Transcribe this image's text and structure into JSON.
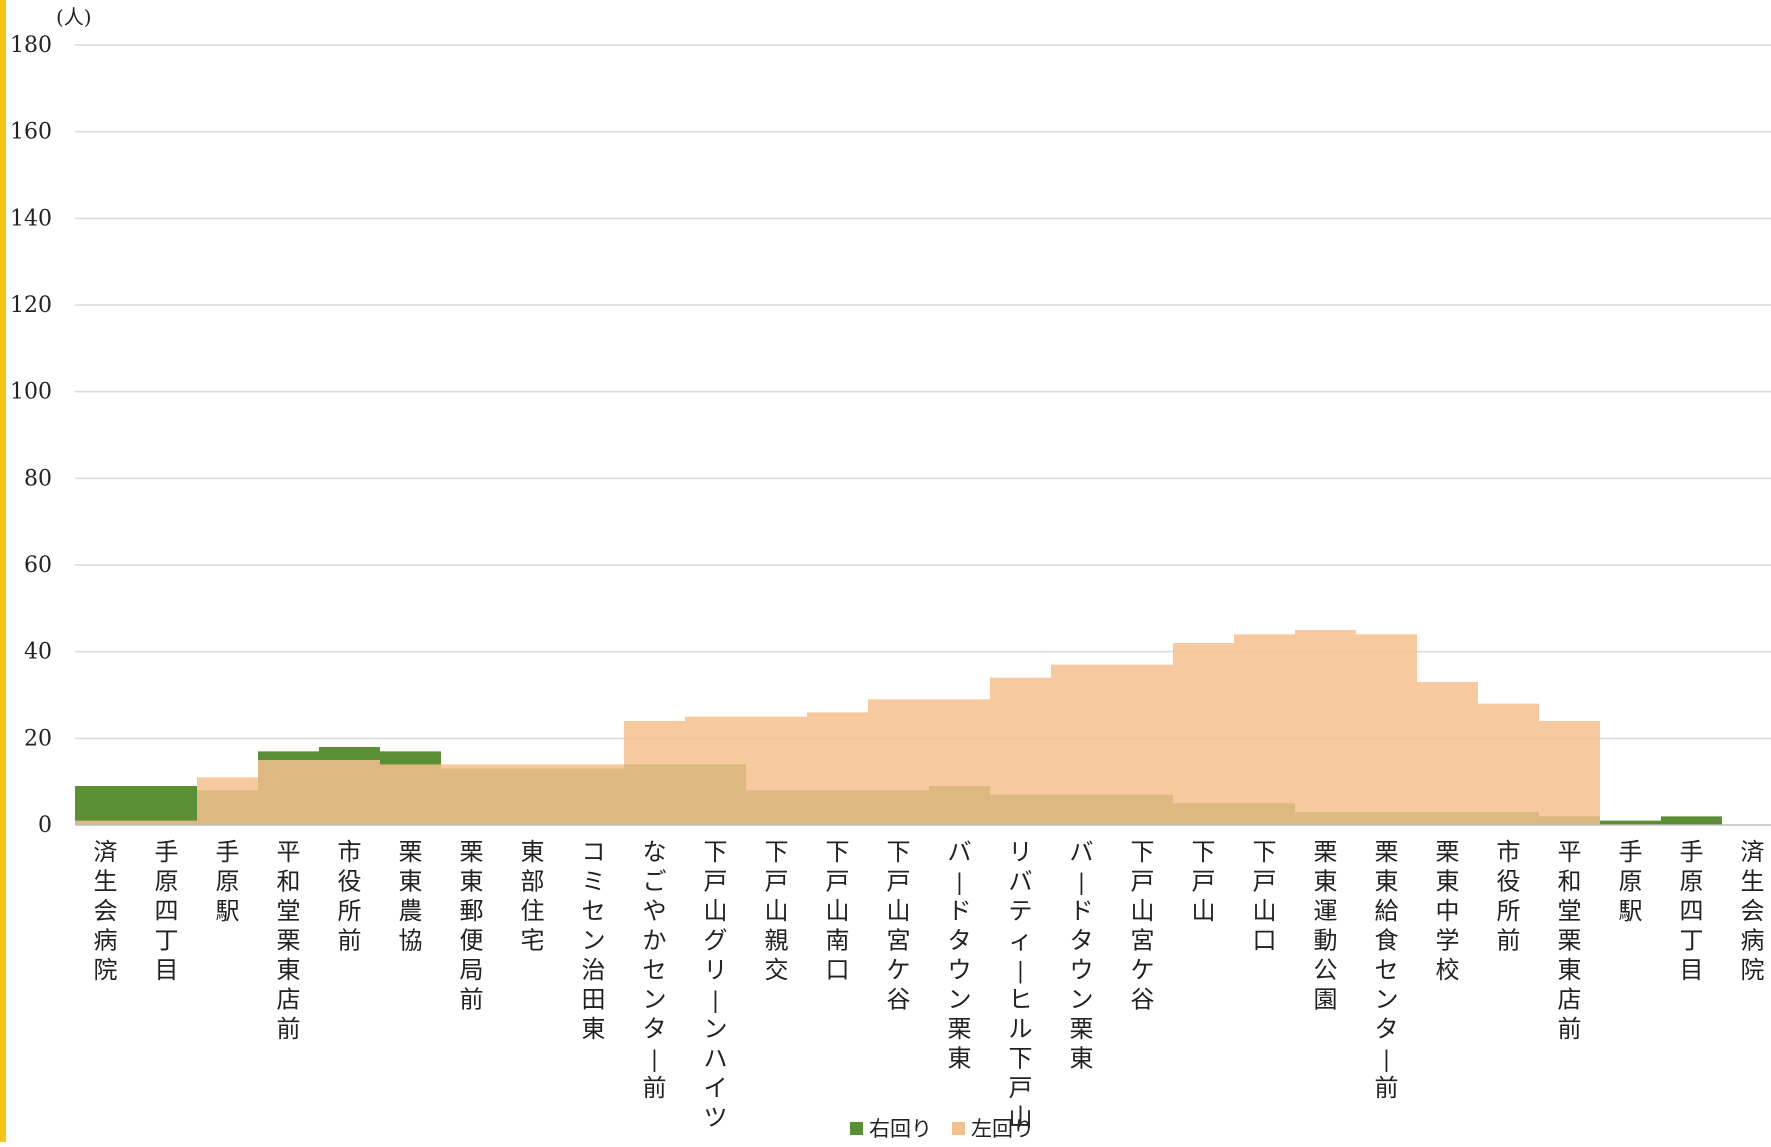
{
  "chart_data": {
    "type": "area",
    "title": "",
    "ylabel": "(人)",
    "xlabel": "",
    "ylim": [
      0,
      180
    ],
    "yticks": [
      0,
      20,
      40,
      60,
      80,
      100,
      120,
      140,
      160,
      180
    ],
    "grid": true,
    "legend_position": "bottom",
    "categories": [
      "済生会病院",
      "手原四丁目",
      "手原駅",
      "平和堂栗東店前",
      "市役所前",
      "栗東農協",
      "栗東郵便局前",
      "東部住宅",
      "コミセン治田東",
      "なごやかセンター前",
      "下戸山グリーンハイツ",
      "下戸山親交",
      "下戸山南口",
      "下戸山宮ケ谷",
      "バードタウン栗東",
      "リバティーヒル下戸山",
      "バードタウン栗東",
      "下戸山宮ケ谷",
      "下戸山",
      "下戸山口",
      "栗東運動公園",
      "栗東給食センター前",
      "栗東中学校",
      "市役所前",
      "平和堂栗東店前",
      "手原駅",
      "手原四丁目",
      "済生会病院"
    ],
    "series": [
      {
        "name": "右回り",
        "color": "#5b8f35",
        "values": [
          9,
          9,
          8,
          17,
          18,
          17,
          13,
          13,
          13,
          14,
          14,
          8,
          8,
          8,
          9,
          7,
          7,
          7,
          5,
          5,
          3,
          3,
          3,
          3,
          2,
          1,
          2,
          0
        ]
      },
      {
        "name": "左回り",
        "color": "#f5c08e",
        "values": [
          1,
          1,
          11,
          15,
          15,
          14,
          14,
          14,
          14,
          24,
          25,
          25,
          26,
          29,
          29,
          34,
          37,
          37,
          42,
          44,
          45,
          44,
          33,
          28,
          24,
          0,
          0,
          0
        ]
      }
    ]
  },
  "legend": {
    "items": [
      {
        "label": "右回り",
        "color": "#5b8f35"
      },
      {
        "label": "左回り",
        "color": "#f5c08e"
      }
    ]
  }
}
